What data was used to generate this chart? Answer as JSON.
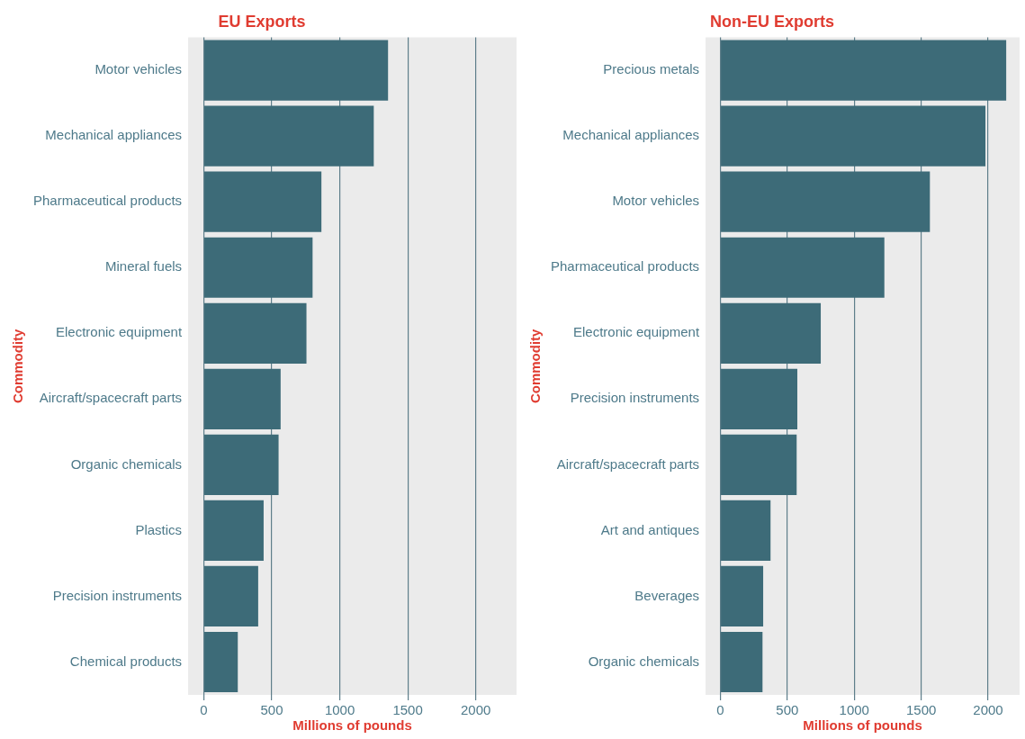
{
  "chart_data": [
    {
      "type": "bar",
      "orientation": "horizontal",
      "title": "EU Exports",
      "xlabel": "Millions of pounds",
      "ylabel": "Commodity",
      "color": "#3d6b78",
      "categories": [
        "Motor vehicles",
        "Mechanical appliances",
        "Pharmaceutical products",
        "Mineral fuels",
        "Electronic equipment",
        "Aircraft/spacecraft parts",
        "Organic chemicals",
        "Plastics",
        "Precision instruments",
        "Chemical products"
      ],
      "values": [
        1355,
        1250,
        865,
        800,
        755,
        565,
        550,
        440,
        400,
        250
      ],
      "xlim": [
        -115,
        2300
      ],
      "xticks": [
        0,
        500,
        1000,
        1500,
        2000
      ],
      "grid": "x"
    },
    {
      "type": "bar",
      "orientation": "horizontal",
      "title": "Non-EU Exports",
      "xlabel": "Millions of pounds",
      "ylabel": "Commodity",
      "color": "#3d6b78",
      "categories": [
        "Precious metals",
        "Mechanical appliances",
        "Motor vehicles",
        "Pharmaceutical products",
        "Electronic equipment",
        "Precision instruments",
        "Aircraft/spacecraft parts",
        "Art and antiques",
        "Beverages",
        "Organic chemicals"
      ],
      "values": [
        2135,
        1980,
        1565,
        1225,
        750,
        575,
        570,
        375,
        320,
        315
      ],
      "xlim": [
        -110,
        2235
      ],
      "xticks": [
        0,
        500,
        1000,
        1500,
        2000
      ],
      "grid": "x"
    }
  ]
}
